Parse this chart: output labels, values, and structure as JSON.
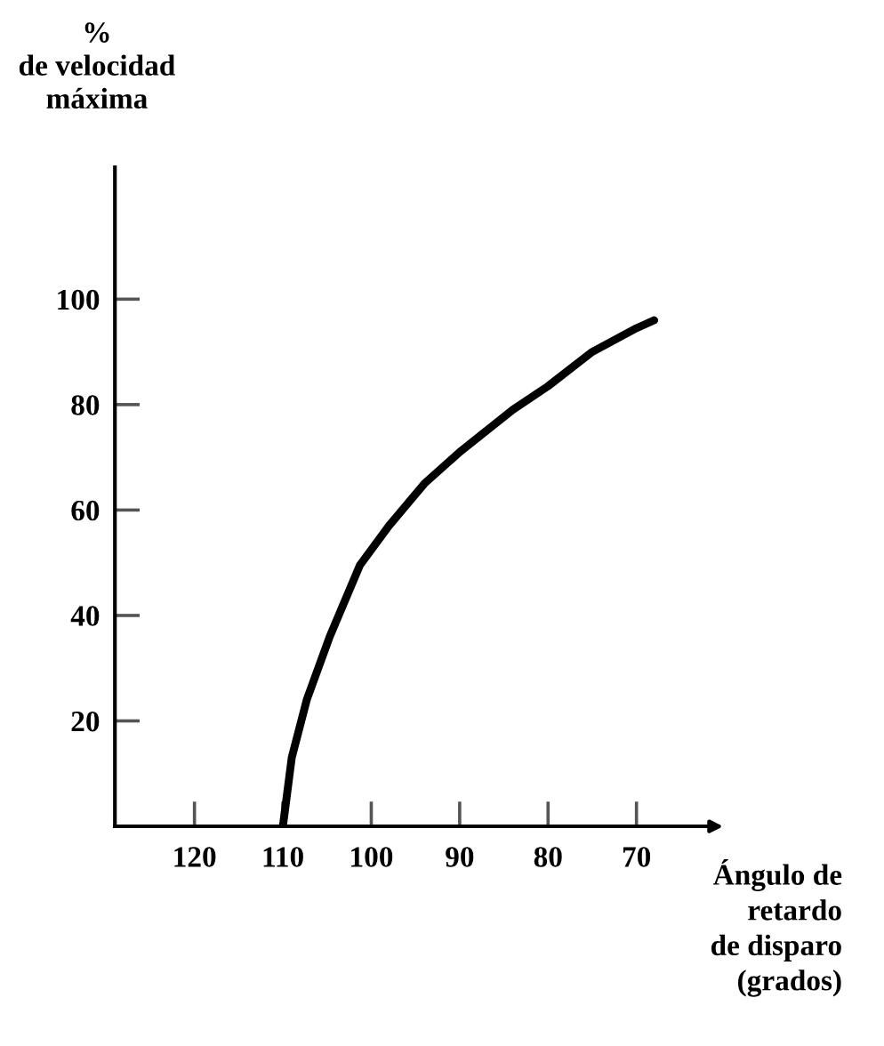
{
  "chart_data": {
    "type": "line",
    "ylabel": "%\nde velocidad\nmáxima",
    "xlabel": "Ángulo de\nretardo\nde disparo\n(grados)",
    "x": [
      110,
      109,
      107.3,
      104.7,
      101.3,
      98,
      94,
      90,
      84,
      80,
      75,
      70,
      68
    ],
    "series": [
      {
        "color": "#000000",
        "values": [
          0,
          13,
          24,
          36,
          49.5,
          57,
          65,
          71,
          79,
          83.5,
          90,
          94.5,
          96
        ]
      }
    ],
    "xlim": [
      129,
      61
    ],
    "ylim": [
      0,
      125
    ],
    "xticks": [
      120,
      110,
      100,
      90,
      80,
      70
    ],
    "yticks": [
      20,
      40,
      60,
      80,
      100
    ],
    "grid": false,
    "legend": false,
    "marker": "none",
    "line_style": "solid"
  }
}
